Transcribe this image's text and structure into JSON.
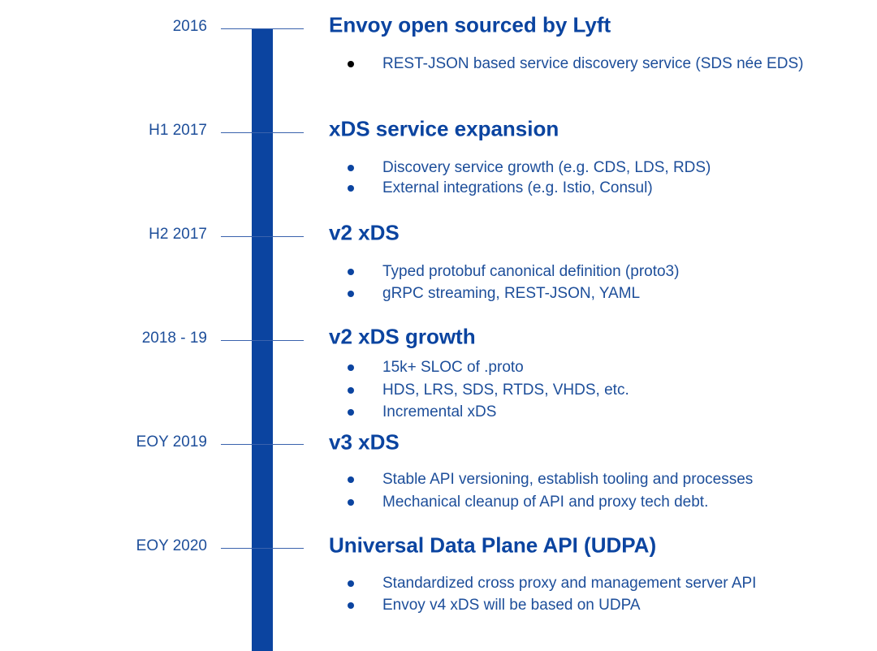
{
  "colors": {
    "accent": "#0b44a0",
    "text": "#1d4e9a"
  },
  "entries": [
    {
      "date": "2016",
      "title": "Envoy open sourced by Lyft",
      "items": [
        "REST-JSON based service discovery service (SDS née EDS)"
      ]
    },
    {
      "date": "H1 2017",
      "title": "xDS service expansion",
      "items": [
        "Discovery service growth (e.g. CDS, LDS, RDS)",
        "External integrations (e.g. Istio, Consul)"
      ]
    },
    {
      "date": "H2 2017",
      "title": "v2 xDS",
      "items": [
        "Typed protobuf canonical definition (proto3)",
        "gRPC streaming, REST-JSON, YAML"
      ]
    },
    {
      "date": "2018 - 19",
      "title": "v2 xDS growth",
      "items": [
        "15k+ SLOC of .proto",
        "HDS, LRS, SDS, RTDS, VHDS, etc.",
        "Incremental xDS"
      ]
    },
    {
      "date": "EOY 2019",
      "title": "v3 xDS",
      "items": [
        "Stable API versioning, establish tooling and processes",
        "Mechanical cleanup of API and proxy tech debt."
      ]
    },
    {
      "date": "EOY 2020",
      "title": "Universal Data Plane API (UDPA)",
      "items": [
        "Standardized cross proxy and management server API",
        "Envoy v4 xDS will be based on UDPA"
      ]
    }
  ]
}
